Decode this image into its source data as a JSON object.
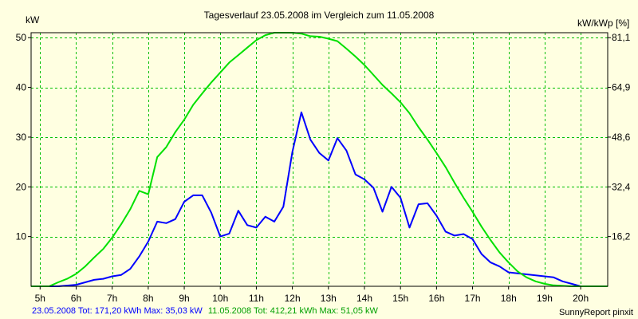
{
  "chart_data": {
    "type": "line",
    "title": "Tagesverlauf 23.05.2008 im Vergleich zum 11.05.2008",
    "y_left_unit": "kW",
    "y_right_unit": "kW/kWp [%]",
    "xlim": [
      4.75,
      20.75
    ],
    "ylim": [
      0,
      51
    ],
    "x_ticks": [
      5,
      6,
      7,
      8,
      9,
      10,
      11,
      12,
      13,
      14,
      15,
      16,
      17,
      18,
      19,
      20
    ],
    "x_tick_labels": [
      "5h",
      "6h",
      "7h",
      "8h",
      "9h",
      "10h",
      "11h",
      "12h",
      "13h",
      "14h",
      "15h",
      "16h",
      "17h",
      "18h",
      "19h",
      "20h"
    ],
    "y_left_ticks": [
      10,
      20,
      30,
      40,
      50
    ],
    "y_left_tick_labels": [
      "10",
      "20",
      "30",
      "40",
      "50"
    ],
    "y_right_ticks": [
      10,
      20,
      30,
      40,
      50
    ],
    "y_right_tick_labels": [
      "16,2",
      "32,4",
      "48,6",
      "64,9",
      "81,1"
    ],
    "grid": true,
    "series": [
      {
        "name": "23.05.2008",
        "color": "#0000ff",
        "x": [
          4.75,
          5.5,
          6.0,
          6.25,
          6.5,
          6.75,
          7.0,
          7.25,
          7.5,
          7.75,
          8.0,
          8.25,
          8.5,
          8.75,
          9.0,
          9.25,
          9.5,
          9.75,
          10.0,
          10.25,
          10.5,
          10.75,
          11.0,
          11.25,
          11.5,
          11.75,
          12.0,
          12.25,
          12.5,
          12.75,
          13.0,
          13.25,
          13.5,
          13.75,
          14.0,
          14.25,
          14.5,
          14.75,
          15.0,
          15.25,
          15.5,
          15.75,
          16.0,
          16.25,
          16.5,
          16.75,
          17.0,
          17.25,
          17.5,
          17.75,
          18.0,
          18.5,
          19.0,
          19.25,
          19.5,
          19.75,
          20.0,
          20.75
        ],
        "values": [
          0,
          0,
          0.3,
          0.8,
          1.3,
          1.5,
          2.0,
          2.3,
          3.5,
          6.0,
          9.0,
          13.0,
          12.7,
          13.5,
          17.0,
          18.3,
          18.3,
          14.8,
          10.0,
          10.6,
          15.2,
          12.3,
          11.8,
          14.0,
          13.0,
          16.0,
          27.0,
          35.0,
          29.5,
          26.8,
          25.3,
          29.8,
          27.3,
          22.5,
          21.5,
          19.8,
          15.0,
          20.0,
          17.8,
          11.8,
          16.5,
          16.7,
          14.2,
          11.0,
          10.2,
          10.5,
          9.5,
          6.5,
          4.8,
          4.0,
          2.8,
          2.4,
          2.0,
          1.8,
          1.0,
          0.5,
          0,
          0
        ]
      },
      {
        "name": "11.05.2008",
        "color": "#00e000",
        "x": [
          4.75,
          5.25,
          5.5,
          5.75,
          6.0,
          6.25,
          6.5,
          6.75,
          7.0,
          7.25,
          7.5,
          7.75,
          8.0,
          8.25,
          8.5,
          8.75,
          9.0,
          9.25,
          9.5,
          9.75,
          10.0,
          10.25,
          10.5,
          10.75,
          11.0,
          11.25,
          11.5,
          11.75,
          12.0,
          12.25,
          12.5,
          12.75,
          13.0,
          13.25,
          13.5,
          13.75,
          14.0,
          14.25,
          14.5,
          14.75,
          15.0,
          15.25,
          15.5,
          15.75,
          16.0,
          16.25,
          16.5,
          16.75,
          17.0,
          17.25,
          17.5,
          17.75,
          18.0,
          18.25,
          18.5,
          18.75,
          19.0,
          19.25,
          19.5,
          19.75,
          20.0,
          20.75
        ],
        "values": [
          0,
          0,
          0.8,
          1.5,
          2.5,
          4.0,
          5.8,
          7.5,
          9.8,
          12.5,
          15.5,
          19.2,
          18.5,
          26.0,
          28.0,
          31.0,
          33.5,
          36.5,
          38.8,
          41.0,
          43.0,
          45.0,
          46.5,
          48.0,
          49.5,
          50.5,
          51.0,
          51.0,
          51.0,
          50.8,
          50.3,
          50.2,
          49.8,
          49.3,
          47.8,
          46.2,
          44.5,
          42.5,
          40.5,
          38.8,
          37.0,
          34.8,
          32.0,
          29.5,
          26.8,
          24.0,
          20.8,
          17.8,
          15.0,
          12.0,
          9.3,
          6.8,
          4.8,
          3.0,
          1.8,
          1.0,
          0.5,
          0.2,
          0.1,
          0,
          0,
          0
        ]
      }
    ]
  },
  "footer": {
    "left_blue": "23.05.2008 Tot: 171,20 kWh Max: 35,03 kW",
    "left_green": "11.05.2008 Tot: 412,21 kWh Max: 51,05 kW",
    "right": "SunnyReport pinxit"
  },
  "colors": {
    "background": "#ffffe1",
    "grid": "#00c000",
    "axis": "#000000",
    "footer_blue": "#0000ff",
    "footer_green": "#00a000"
  }
}
